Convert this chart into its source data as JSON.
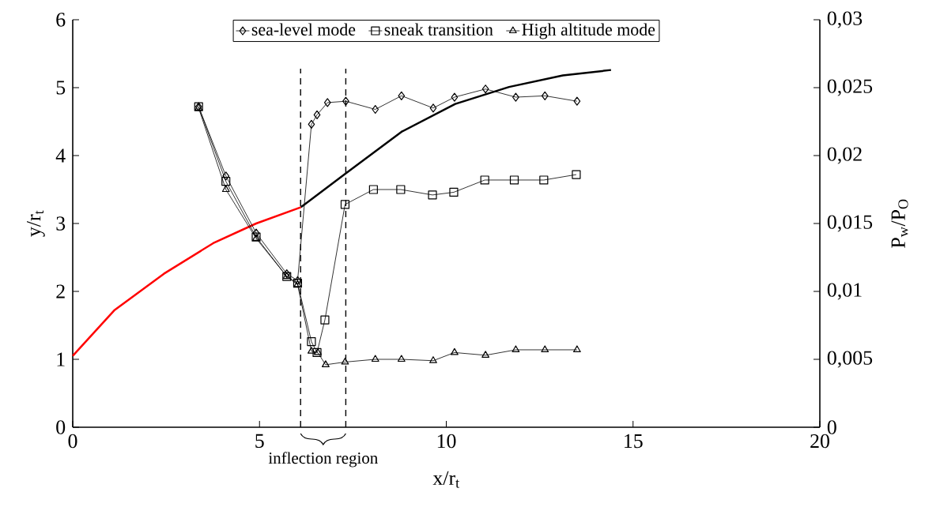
{
  "chart_data": {
    "type": "line",
    "xlabel": "x/r$_{t}$",
    "ylabel": "y/r$_{t}$",
    "y2label": "P$_{w}$/P$_{O}$",
    "xlim": [
      0,
      20
    ],
    "xticks": [
      0,
      5,
      10,
      15,
      20
    ],
    "ylim": [
      0,
      6
    ],
    "yticks": [
      0,
      1,
      2,
      3,
      4,
      5,
      6
    ],
    "y2lim": [
      0,
      0.03
    ],
    "y2ticks": [
      {
        "value": 0,
        "label": "0"
      },
      {
        "value": 0.005,
        "label": "0,005"
      },
      {
        "value": 0.01,
        "label": "0,01"
      },
      {
        "value": 0.015,
        "label": "0,015"
      },
      {
        "value": 0.02,
        "label": "0,02"
      },
      {
        "value": 0.025,
        "label": "0,025"
      },
      {
        "value": 0.03,
        "label": "0,03"
      }
    ],
    "grid": false,
    "legend": "top",
    "line_style": "solid",
    "series": [
      {
        "color": "#ff0000",
        "x": [
          0,
          1.11,
          2.44,
          3.76,
          4.91,
          6.11
        ],
        "values": [
          1.05,
          1.72,
          2.26,
          2.71,
          3.0,
          3.24
        ],
        "marker": "none"
      },
      {
        "color": "#000000",
        "x": [
          6.11,
          7.29,
          8.8,
          10.24,
          11.68,
          13.12,
          14.41
        ],
        "values": [
          3.24,
          3.73,
          4.35,
          4.76,
          5.01,
          5.18,
          5.26
        ],
        "marker": "none"
      },
      {
        "name": "sea-level mode",
        "color": "#000000",
        "axis": "y2",
        "marker": "diamond",
        "x": [
          3.37,
          4.1,
          4.91,
          5.73,
          6.02,
          6.39,
          6.54,
          6.82,
          7.31,
          8.1,
          8.8,
          9.65,
          10.22,
          11.05,
          11.86,
          12.64,
          13.5
        ],
        "values": [
          0.0236,
          0.0185,
          0.0143,
          0.0113,
          0.0108,
          0.0223,
          0.023,
          0.0239,
          0.024,
          0.0234,
          0.0244,
          0.0235,
          0.0243,
          0.0249,
          0.0243,
          0.0244,
          0.024
        ]
      },
      {
        "name": "sneak transition",
        "color": "#000000",
        "axis": "y2",
        "marker": "square",
        "x": [
          3.37,
          4.1,
          4.91,
          5.73,
          6.02,
          6.39,
          6.54,
          6.75,
          7.29,
          8.05,
          8.78,
          9.63,
          10.2,
          11.03,
          11.82,
          12.61,
          13.48
        ],
        "values": [
          0.0236,
          0.0181,
          0.014,
          0.0111,
          0.0106,
          0.0063,
          0.0055,
          0.0079,
          0.0164,
          0.0175,
          0.0175,
          0.0171,
          0.0173,
          0.0182,
          0.0182,
          0.0182,
          0.0186
        ]
      },
      {
        "name": "High altitude mode",
        "color": "#000000",
        "axis": "y2",
        "marker": "triangle",
        "x": [
          3.37,
          4.1,
          4.91,
          5.73,
          6.02,
          6.39,
          6.56,
          6.77,
          7.29,
          8.1,
          8.8,
          9.65,
          10.22,
          11.05,
          11.86,
          12.64,
          13.5
        ],
        "values": [
          0.0235,
          0.0175,
          0.0139,
          0.0111,
          0.0105,
          0.0056,
          0.0055,
          0.0046,
          0.0048,
          0.005,
          0.005,
          0.0049,
          0.0055,
          0.0053,
          0.0057,
          0.0057,
          0.0057
        ]
      }
    ],
    "ref_lines": [
      {
        "axis": "x",
        "value": 6.1,
        "line_style": "dashed",
        "color": "#000000"
      },
      {
        "axis": "x",
        "value": 7.31,
        "line_style": "dashed",
        "color": "#000000"
      }
    ],
    "annotations": [
      "inflection region"
    ]
  }
}
